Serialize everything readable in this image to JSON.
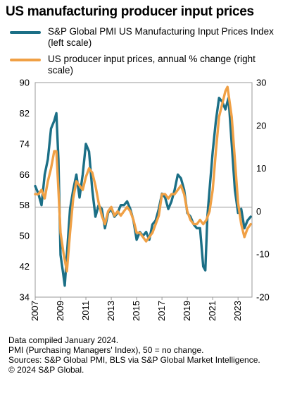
{
  "chart_data": {
    "type": "line",
    "title": "US manufacturing producer input prices",
    "x_range": [
      2007,
      2024.1
    ],
    "x_ticks": [
      "2007",
      "2009",
      "2011",
      "2013",
      "2015",
      "2017",
      "2019",
      "2021",
      "2023"
    ],
    "y_left": {
      "range": [
        34,
        90
      ],
      "ticks": [
        "90",
        "82",
        "74",
        "66",
        "58",
        "50",
        "42",
        "34"
      ]
    },
    "y_right": {
      "range": [
        -20,
        30
      ],
      "ticks": [
        "30",
        "20",
        "10",
        "0",
        "-10",
        "-20"
      ]
    },
    "reference_line": {
      "axis": "left",
      "value": 57.5
    },
    "grid": false,
    "legend_position": "top",
    "series": [
      {
        "name": "S&P Global PMI US Manufacturing Input Prices Index (left scale)",
        "axis": "left",
        "color": "#1b6f86",
        "points": [
          [
            2007.0,
            63
          ],
          [
            2007.25,
            61
          ],
          [
            2007.5,
            58
          ],
          [
            2007.75,
            66
          ],
          [
            2008.0,
            70
          ],
          [
            2008.25,
            78
          ],
          [
            2008.5,
            80
          ],
          [
            2008.67,
            82
          ],
          [
            2008.83,
            70
          ],
          [
            2009.0,
            45
          ],
          [
            2009.17,
            41
          ],
          [
            2009.33,
            37
          ],
          [
            2009.5,
            45
          ],
          [
            2009.75,
            57
          ],
          [
            2010.0,
            62
          ],
          [
            2010.25,
            66
          ],
          [
            2010.5,
            60
          ],
          [
            2010.75,
            66
          ],
          [
            2011.0,
            74
          ],
          [
            2011.25,
            72
          ],
          [
            2011.5,
            62
          ],
          [
            2011.75,
            55
          ],
          [
            2012.0,
            58
          ],
          [
            2012.25,
            57
          ],
          [
            2012.5,
            52
          ],
          [
            2012.75,
            56
          ],
          [
            2013.0,
            57
          ],
          [
            2013.25,
            55
          ],
          [
            2013.5,
            56
          ],
          [
            2013.75,
            58
          ],
          [
            2014.0,
            58
          ],
          [
            2014.25,
            59
          ],
          [
            2014.5,
            57
          ],
          [
            2014.75,
            54
          ],
          [
            2015.0,
            49
          ],
          [
            2015.25,
            51
          ],
          [
            2015.5,
            50
          ],
          [
            2015.75,
            51
          ],
          [
            2016.0,
            49
          ],
          [
            2016.25,
            53
          ],
          [
            2016.5,
            54
          ],
          [
            2016.75,
            57
          ],
          [
            2017.0,
            61
          ],
          [
            2017.25,
            60
          ],
          [
            2017.5,
            57
          ],
          [
            2017.75,
            59
          ],
          [
            2018.0,
            62
          ],
          [
            2018.25,
            66
          ],
          [
            2018.5,
            65
          ],
          [
            2018.75,
            62
          ],
          [
            2019.0,
            56
          ],
          [
            2019.25,
            55
          ],
          [
            2019.5,
            53
          ],
          [
            2019.75,
            52
          ],
          [
            2020.0,
            52
          ],
          [
            2020.25,
            42
          ],
          [
            2020.42,
            41
          ],
          [
            2020.58,
            55
          ],
          [
            2020.75,
            62
          ],
          [
            2021.0,
            72
          ],
          [
            2021.25,
            80
          ],
          [
            2021.5,
            86
          ],
          [
            2021.75,
            85
          ],
          [
            2022.0,
            83
          ],
          [
            2022.25,
            86
          ],
          [
            2022.5,
            74
          ],
          [
            2022.75,
            62
          ],
          [
            2023.0,
            56
          ],
          [
            2023.25,
            57
          ],
          [
            2023.5,
            52
          ],
          [
            2023.75,
            54
          ],
          [
            2024.0,
            55
          ]
        ]
      },
      {
        "name": "US producer input prices, annual % change (right scale)",
        "axis": "right",
        "color": "#f0a045",
        "points": [
          [
            2007.0,
            4
          ],
          [
            2007.25,
            4
          ],
          [
            2007.5,
            5
          ],
          [
            2007.75,
            3
          ],
          [
            2008.0,
            7
          ],
          [
            2008.25,
            10
          ],
          [
            2008.5,
            14
          ],
          [
            2008.67,
            14
          ],
          [
            2008.83,
            5
          ],
          [
            2009.0,
            -5
          ],
          [
            2009.25,
            -10
          ],
          [
            2009.5,
            -14
          ],
          [
            2009.75,
            -5
          ],
          [
            2010.0,
            3
          ],
          [
            2010.25,
            7
          ],
          [
            2010.5,
            6
          ],
          [
            2010.75,
            5
          ],
          [
            2011.0,
            8
          ],
          [
            2011.25,
            10
          ],
          [
            2011.5,
            9
          ],
          [
            2011.75,
            6
          ],
          [
            2012.0,
            2
          ],
          [
            2012.25,
            -1
          ],
          [
            2012.5,
            -3
          ],
          [
            2012.75,
            0
          ],
          [
            2013.0,
            1
          ],
          [
            2013.25,
            -1
          ],
          [
            2013.5,
            0
          ],
          [
            2013.75,
            -1
          ],
          [
            2014.0,
            0
          ],
          [
            2014.25,
            1
          ],
          [
            2014.5,
            0
          ],
          [
            2014.75,
            -2
          ],
          [
            2015.0,
            -5
          ],
          [
            2015.25,
            -5
          ],
          [
            2015.5,
            -6
          ],
          [
            2015.75,
            -7
          ],
          [
            2016.0,
            -6
          ],
          [
            2016.25,
            -5
          ],
          [
            2016.5,
            -3
          ],
          [
            2016.75,
            -1
          ],
          [
            2017.0,
            4
          ],
          [
            2017.25,
            4
          ],
          [
            2017.5,
            3
          ],
          [
            2017.75,
            4
          ],
          [
            2018.0,
            4
          ],
          [
            2018.25,
            5
          ],
          [
            2018.5,
            6
          ],
          [
            2018.75,
            4
          ],
          [
            2019.0,
            0
          ],
          [
            2019.25,
            -2
          ],
          [
            2019.5,
            -3
          ],
          [
            2019.75,
            -3
          ],
          [
            2020.0,
            -2
          ],
          [
            2020.25,
            -3
          ],
          [
            2020.5,
            -2
          ],
          [
            2020.75,
            0
          ],
          [
            2021.0,
            5
          ],
          [
            2021.25,
            14
          ],
          [
            2021.5,
            22
          ],
          [
            2021.75,
            25
          ],
          [
            2022.0,
            28
          ],
          [
            2022.17,
            29
          ],
          [
            2022.5,
            22
          ],
          [
            2022.75,
            12
          ],
          [
            2023.0,
            2
          ],
          [
            2023.25,
            -3
          ],
          [
            2023.5,
            -6
          ],
          [
            2023.75,
            -4
          ],
          [
            2024.0,
            -3
          ]
        ]
      }
    ]
  },
  "footnotes": [
    "Data compiled January 2024.",
    "PMI (Purchasing Managers' Index), 50 = no change.",
    "Sources: S&P Global PMI, BLS via S&P Global Market Intelligence.",
    "© 2024 S&P Global."
  ]
}
